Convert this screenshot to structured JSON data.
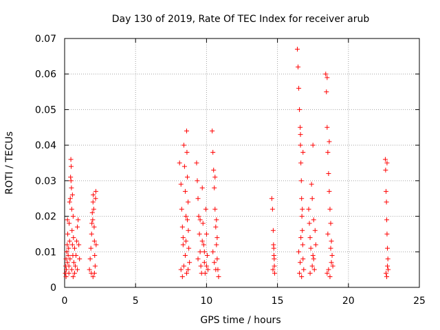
{
  "chart_data": {
    "type": "scatter",
    "title": "Day 130 of 2019, Rate Of TEC Index for receiver arub",
    "xlabel": "GPS time / hours",
    "ylabel": "ROTI / TECUs",
    "xlim": [
      0,
      25
    ],
    "ylim": [
      0,
      0.07
    ],
    "xticks": [
      0,
      5,
      10,
      15,
      20,
      25
    ],
    "xtick_labels": [
      "0",
      "5",
      "10",
      "15",
      "20",
      "25"
    ],
    "yticks": [
      0,
      0.01,
      0.02,
      0.03,
      0.04,
      0.05,
      0.06,
      0.07
    ],
    "ytick_labels": [
      "0",
      "0.01",
      "0.02",
      "0.03",
      "0.04",
      "0.05",
      "0.06",
      "0.07"
    ],
    "grid": true,
    "marker": "+",
    "color": "#ff0000",
    "series": [
      {
        "points": [
          [
            0.05,
            0.004
          ],
          [
            0.08,
            0.006
          ],
          [
            0.1,
            0.008
          ],
          [
            0.12,
            0.005
          ],
          [
            0.15,
            0.01
          ],
          [
            0.18,
            0.012
          ],
          [
            0.2,
            0.007
          ],
          [
            0.22,
            0.015
          ],
          [
            0.25,
            0.009
          ],
          [
            0.28,
            0.011
          ],
          [
            0.3,
            0.006
          ],
          [
            0.32,
            0.018
          ],
          [
            0.35,
            0.013
          ],
          [
            0.38,
            0.008
          ],
          [
            0.4,
            0.025
          ],
          [
            0.42,
            0.031
          ],
          [
            0.44,
            0.036
          ],
          [
            0.46,
            0.034
          ],
          [
            0.48,
            0.028
          ],
          [
            0.5,
            0.022
          ],
          [
            0.52,
            0.016
          ],
          [
            0.55,
            0.012
          ],
          [
            0.58,
            0.009
          ],
          [
            0.6,
            0.02
          ],
          [
            0.62,
            0.014
          ],
          [
            0.65,
            0.007
          ],
          [
            0.7,
            0.011
          ],
          [
            0.75,
            0.006
          ],
          [
            0.8,
            0.009
          ],
          [
            0.85,
            0.013
          ],
          [
            0.9,
            0.017
          ],
          [
            0.95,
            0.019
          ],
          [
            1.0,
            0.012
          ],
          [
            1.05,
            0.008
          ],
          [
            0.1,
            0.003
          ],
          [
            0.3,
            0.004
          ],
          [
            0.5,
            0.005
          ],
          [
            0.7,
            0.004
          ],
          [
            0.9,
            0.005
          ],
          [
            0.2,
            0.019
          ],
          [
            0.35,
            0.024
          ],
          [
            0.45,
            0.03
          ],
          [
            0.55,
            0.026
          ],
          [
            0.6,
            0.003
          ],
          [
            1.75,
            0.005
          ],
          [
            1.8,
            0.008
          ],
          [
            1.85,
            0.011
          ],
          [
            1.9,
            0.015
          ],
          [
            1.92,
            0.018
          ],
          [
            1.95,
            0.021
          ],
          [
            2.0,
            0.024
          ],
          [
            2.02,
            0.026
          ],
          [
            2.05,
            0.022
          ],
          [
            2.08,
            0.017
          ],
          [
            2.1,
            0.013
          ],
          [
            2.12,
            0.009
          ],
          [
            2.15,
            0.006
          ],
          [
            2.18,
            0.025
          ],
          [
            2.2,
            0.027
          ],
          [
            2.22,
            0.012
          ],
          [
            1.88,
            0.004
          ],
          [
            2.0,
            0.003
          ],
          [
            2.1,
            0.004
          ],
          [
            1.98,
            0.019
          ],
          [
            8.1,
            0.035
          ],
          [
            8.2,
            0.029
          ],
          [
            8.25,
            0.022
          ],
          [
            8.3,
            0.017
          ],
          [
            8.35,
            0.012
          ],
          [
            8.4,
            0.04
          ],
          [
            8.45,
            0.034
          ],
          [
            8.5,
            0.027
          ],
          [
            8.55,
            0.02
          ],
          [
            8.6,
            0.044
          ],
          [
            8.62,
            0.038
          ],
          [
            8.65,
            0.031
          ],
          [
            8.7,
            0.024
          ],
          [
            8.72,
            0.016
          ],
          [
            8.75,
            0.011
          ],
          [
            8.8,
            0.007
          ],
          [
            8.2,
            0.005
          ],
          [
            8.3,
            0.003
          ],
          [
            8.4,
            0.006
          ],
          [
            8.5,
            0.009
          ],
          [
            8.6,
            0.004
          ],
          [
            8.7,
            0.005
          ],
          [
            8.35,
            0.014
          ],
          [
            8.55,
            0.013
          ],
          [
            8.65,
            0.019
          ],
          [
            9.3,
            0.035
          ],
          [
            9.35,
            0.03
          ],
          [
            9.4,
            0.025
          ],
          [
            9.45,
            0.02
          ],
          [
            9.5,
            0.015
          ],
          [
            9.55,
            0.01
          ],
          [
            9.6,
            0.006
          ],
          [
            9.65,
            0.004
          ],
          [
            9.7,
            0.028
          ],
          [
            9.75,
            0.018
          ],
          [
            9.8,
            0.012
          ],
          [
            9.85,
            0.007
          ],
          [
            9.9,
            0.004
          ],
          [
            9.95,
            0.022
          ],
          [
            10.0,
            0.015
          ],
          [
            10.05,
            0.009
          ],
          [
            10.1,
            0.005
          ],
          [
            9.4,
            0.008
          ],
          [
            9.55,
            0.019
          ],
          [
            9.7,
            0.013
          ],
          [
            9.85,
            0.01
          ],
          [
            10.0,
            0.006
          ],
          [
            10.4,
            0.044
          ],
          [
            10.45,
            0.038
          ],
          [
            10.5,
            0.033
          ],
          [
            10.55,
            0.028
          ],
          [
            10.6,
            0.022
          ],
          [
            10.65,
            0.017
          ],
          [
            10.7,
            0.012
          ],
          [
            10.75,
            0.008
          ],
          [
            10.8,
            0.005
          ],
          [
            10.85,
            0.003
          ],
          [
            10.45,
            0.01
          ],
          [
            10.55,
            0.007
          ],
          [
            10.65,
            0.005
          ],
          [
            10.7,
            0.019
          ],
          [
            10.75,
            0.014
          ],
          [
            10.6,
            0.031
          ],
          [
            14.6,
            0.025
          ],
          [
            14.65,
            0.022
          ],
          [
            14.7,
            0.016
          ],
          [
            14.72,
            0.012
          ],
          [
            14.75,
            0.009
          ],
          [
            14.78,
            0.006
          ],
          [
            14.8,
            0.004
          ],
          [
            14.68,
            0.005
          ],
          [
            14.74,
            0.011
          ],
          [
            14.77,
            0.008
          ],
          [
            16.4,
            0.067
          ],
          [
            16.45,
            0.062
          ],
          [
            16.5,
            0.056
          ],
          [
            16.55,
            0.05
          ],
          [
            16.6,
            0.045
          ],
          [
            16.62,
            0.04
          ],
          [
            16.65,
            0.035
          ],
          [
            16.68,
            0.03
          ],
          [
            16.7,
            0.025
          ],
          [
            16.72,
            0.02
          ],
          [
            16.75,
            0.016
          ],
          [
            16.78,
            0.012
          ],
          [
            16.8,
            0.008
          ],
          [
            16.85,
            0.005
          ],
          [
            16.5,
            0.01
          ],
          [
            16.55,
            0.004
          ],
          [
            16.6,
            0.007
          ],
          [
            16.7,
            0.003
          ],
          [
            16.65,
            0.014
          ],
          [
            16.75,
            0.022
          ],
          [
            16.8,
            0.038
          ],
          [
            16.62,
            0.043
          ],
          [
            17.2,
            0.022
          ],
          [
            17.25,
            0.018
          ],
          [
            17.3,
            0.014
          ],
          [
            17.35,
            0.011
          ],
          [
            17.4,
            0.029
          ],
          [
            17.45,
            0.025
          ],
          [
            17.5,
            0.04
          ],
          [
            17.55,
            0.008
          ],
          [
            17.6,
            0.005
          ],
          [
            17.65,
            0.016
          ],
          [
            17.7,
            0.012
          ],
          [
            17.3,
            0.004
          ],
          [
            17.45,
            0.006
          ],
          [
            17.55,
            0.019
          ],
          [
            17.5,
            0.009
          ],
          [
            18.4,
            0.06
          ],
          [
            18.45,
            0.055
          ],
          [
            18.5,
            0.045
          ],
          [
            18.55,
            0.038
          ],
          [
            18.6,
            0.032
          ],
          [
            18.65,
            0.027
          ],
          [
            18.7,
            0.022
          ],
          [
            18.75,
            0.018
          ],
          [
            18.8,
            0.013
          ],
          [
            18.85,
            0.009
          ],
          [
            18.9,
            0.006
          ],
          [
            18.5,
            0.004
          ],
          [
            18.6,
            0.005
          ],
          [
            18.7,
            0.003
          ],
          [
            18.8,
            0.007
          ],
          [
            18.55,
            0.015
          ],
          [
            18.75,
            0.011
          ],
          [
            18.65,
            0.041
          ],
          [
            18.5,
            0.059
          ],
          [
            22.6,
            0.036
          ],
          [
            22.62,
            0.033
          ],
          [
            22.65,
            0.027
          ],
          [
            22.68,
            0.024
          ],
          [
            22.7,
            0.019
          ],
          [
            22.72,
            0.015
          ],
          [
            22.75,
            0.011
          ],
          [
            22.78,
            0.008
          ],
          [
            22.8,
            0.005
          ],
          [
            22.7,
            0.003
          ],
          [
            22.75,
            0.006
          ],
          [
            22.65,
            0.004
          ],
          [
            22.72,
            0.035
          ]
        ]
      }
    ]
  }
}
